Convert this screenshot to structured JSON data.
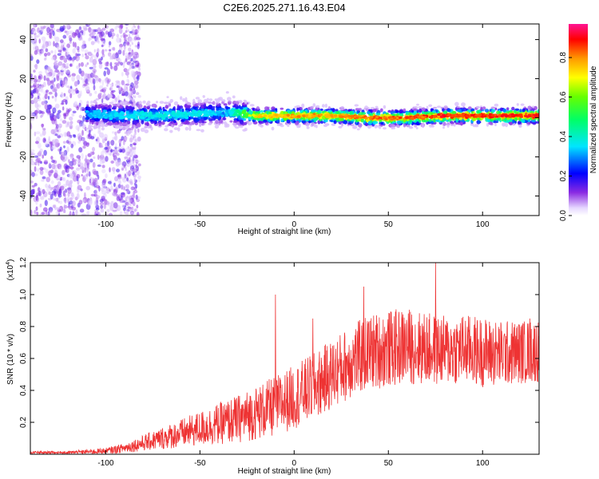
{
  "figure": {
    "title": "C2E6.2025.271.16.43.E04"
  },
  "chart_data": [
    {
      "type": "heatmap",
      "name": "spectrogram",
      "xlabel": "Height of straight line (km)",
      "ylabel": "Frequency (Hz)",
      "xlim": [
        -140,
        130
      ],
      "ylim": [
        -50,
        48
      ],
      "xticks": [
        -100,
        -50,
        0,
        50,
        100
      ],
      "yticks": [
        -40,
        -20,
        0,
        20,
        40
      ],
      "colorbar": {
        "label": "Normalized spectral amplitude",
        "range": [
          0.0,
          0.97
        ],
        "ticks": [
          0.0,
          0.2,
          0.4,
          0.6,
          0.8
        ],
        "tick_labels": [
          "0.0",
          "0.2",
          "0.4",
          "0.6",
          "0.8"
        ],
        "colormap": "rainbow (violet-blue-cyan-green-yellow-orange-red-magenta)"
      },
      "description_of_data": "Scattered low-amplitude noise at x < -85 km; a narrow band near 0-3 Hz from -110 km to 130 km whose amplitude grows from ~0.3 (cyan/green) to ~0.95 (red) for x > -20 km",
      "band": {
        "x": [
          -110,
          -80,
          -50,
          -35,
          -20,
          0,
          20,
          40,
          60,
          80,
          100,
          130
        ],
        "center_freq": [
          2,
          1,
          2,
          3,
          1,
          1,
          1,
          0,
          0,
          1,
          1,
          1
        ],
        "peak_amplitude": [
          0.35,
          0.4,
          0.4,
          0.35,
          0.8,
          0.85,
          0.85,
          0.9,
          0.9,
          0.95,
          0.95,
          0.95
        ]
      }
    },
    {
      "type": "line",
      "name": "snr",
      "xlabel": "Height of straight line (km)",
      "ylabel": "SNR (10 * v/v)",
      "yscale_label": "(x10",
      "yscale_exp": "4",
      "yscale_close": ")",
      "xlim": [
        -140,
        130
      ],
      "ylim": [
        0.0,
        1.2
      ],
      "xticks": [
        -100,
        -50,
        0,
        50,
        100
      ],
      "yticks": [
        0.2,
        0.4,
        0.6,
        0.8,
        1.0,
        1.2
      ],
      "ytick_labels": [
        "0.2",
        "0.4",
        "0.6",
        "0.8",
        "1.0",
        "1.2"
      ],
      "color": "#ee3333",
      "envelope": {
        "x": [
          -140,
          -120,
          -100,
          -90,
          -80,
          -70,
          -60,
          -50,
          -40,
          -30,
          -20,
          -10,
          0,
          10,
          20,
          30,
          40,
          50,
          60,
          70,
          80,
          90,
          100,
          110,
          120,
          130
        ],
        "mean": [
          0.01,
          0.01,
          0.02,
          0.04,
          0.07,
          0.1,
          0.13,
          0.16,
          0.19,
          0.22,
          0.26,
          0.3,
          0.36,
          0.42,
          0.5,
          0.58,
          0.64,
          0.66,
          0.68,
          0.66,
          0.65,
          0.66,
          0.64,
          0.63,
          0.64,
          0.65
        ],
        "amp": [
          0.01,
          0.01,
          0.02,
          0.03,
          0.05,
          0.07,
          0.09,
          0.11,
          0.13,
          0.15,
          0.17,
          0.19,
          0.2,
          0.21,
          0.22,
          0.23,
          0.24,
          0.24,
          0.24,
          0.23,
          0.22,
          0.22,
          0.22,
          0.21,
          0.2,
          0.2
        ]
      },
      "spikes": [
        {
          "x": -10,
          "y": 1.0
        },
        {
          "x": 10,
          "y": 0.85
        },
        {
          "x": 37,
          "y": 1.05
        },
        {
          "x": 75,
          "y": 1.2
        },
        {
          "x": 125,
          "y": 0.85
        }
      ]
    }
  ]
}
